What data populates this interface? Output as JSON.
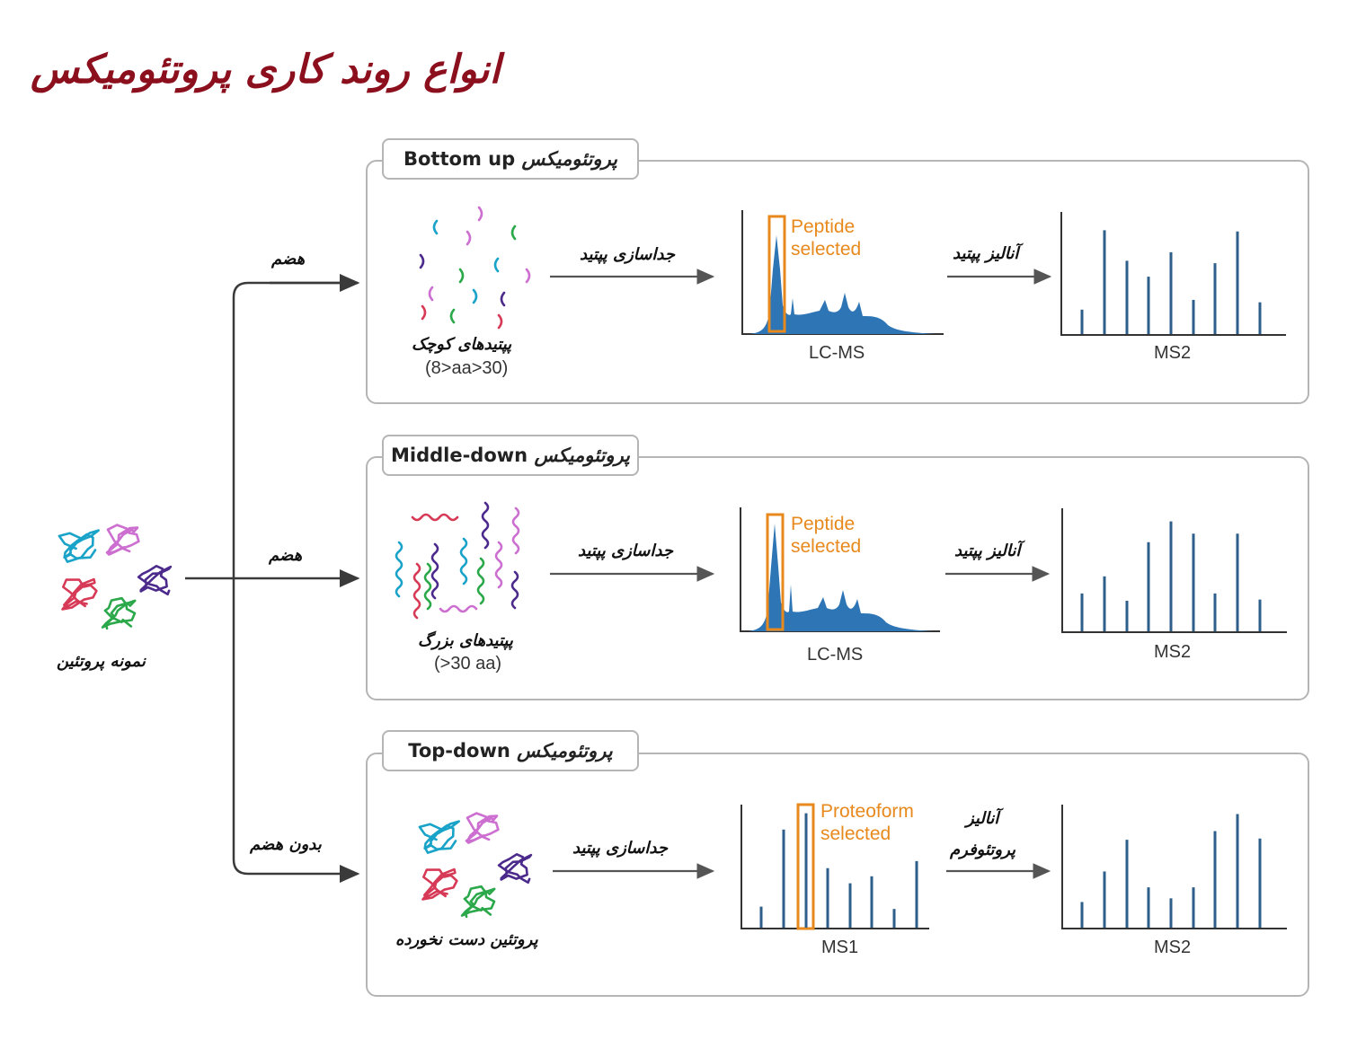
{
  "title": "انواع روند کاری پروتئومیکس",
  "sample_label": "نمونه پروتئین",
  "branches": {
    "top_label": "هضم",
    "middle_label": "هضم",
    "bottom_label": "بدون هضم"
  },
  "panels": [
    {
      "title_en": "Bottom up",
      "title_fa": "پروتئومیکس",
      "sample_label": "پپتیدهای کوچک",
      "sample_sub": "(8>aa>30)",
      "sep_label": "جداسازی پپتید",
      "chart1_highlight": [
        "Peptide",
        "selected"
      ],
      "chart1_label": "LC-MS",
      "analysis_label": [
        "آنالیز پپتید"
      ],
      "chart2_label": "MS2"
    },
    {
      "title_en": "Middle-down",
      "title_fa": "پروتئومیکس",
      "sample_label": "پپتیدهای بزرگ",
      "sample_sub": "(>30 aa)",
      "sep_label": "جداسازی پپتید",
      "chart1_highlight": [
        "Peptide",
        "selected"
      ],
      "chart1_label": "LC-MS",
      "analysis_label": [
        "آنالیز پپتید"
      ],
      "chart2_label": "MS2"
    },
    {
      "title_en": "Top-down",
      "title_fa": "پروتئومیکس",
      "sample_label": "پروتئین دست نخورده",
      "sample_sub": "",
      "sep_label": "جداسازی پپتید",
      "chart1_highlight": [
        "Proteoform",
        "selected"
      ],
      "chart1_label": "MS1",
      "analysis_label": [
        "آنالیز",
        "پروتئوفرم"
      ],
      "chart2_label": "MS2"
    }
  ],
  "colors": {
    "title": "#8b0f1c",
    "spectrum": "#2e75b6",
    "bars": "#2e5f8a",
    "highlight": "#e8891d",
    "frame": "#b5b5b5",
    "peptides": [
      "#1aa3c8",
      "#2aa84a",
      "#d63a56",
      "#4b2a8c",
      "#cc6fd0"
    ]
  },
  "spectra": {
    "ms2_bottom_up": [
      0.2,
      0.85,
      0.6,
      0.47,
      0.67,
      0.28,
      0.58,
      0.84,
      0.26
    ],
    "ms2_middle_down": [
      0.31,
      0.45,
      0.25,
      0.73,
      0.9,
      0.8,
      0.31,
      0.8,
      0.26
    ],
    "ms1_top_down": [
      0.18,
      0.84,
      0.98,
      0.51,
      0.38,
      0.44,
      0.16,
      0.57
    ],
    "ms2_top_down": [
      0.21,
      0.46,
      0.72,
      0.33,
      0.24,
      0.33,
      0.79,
      0.93,
      0.73
    ]
  }
}
